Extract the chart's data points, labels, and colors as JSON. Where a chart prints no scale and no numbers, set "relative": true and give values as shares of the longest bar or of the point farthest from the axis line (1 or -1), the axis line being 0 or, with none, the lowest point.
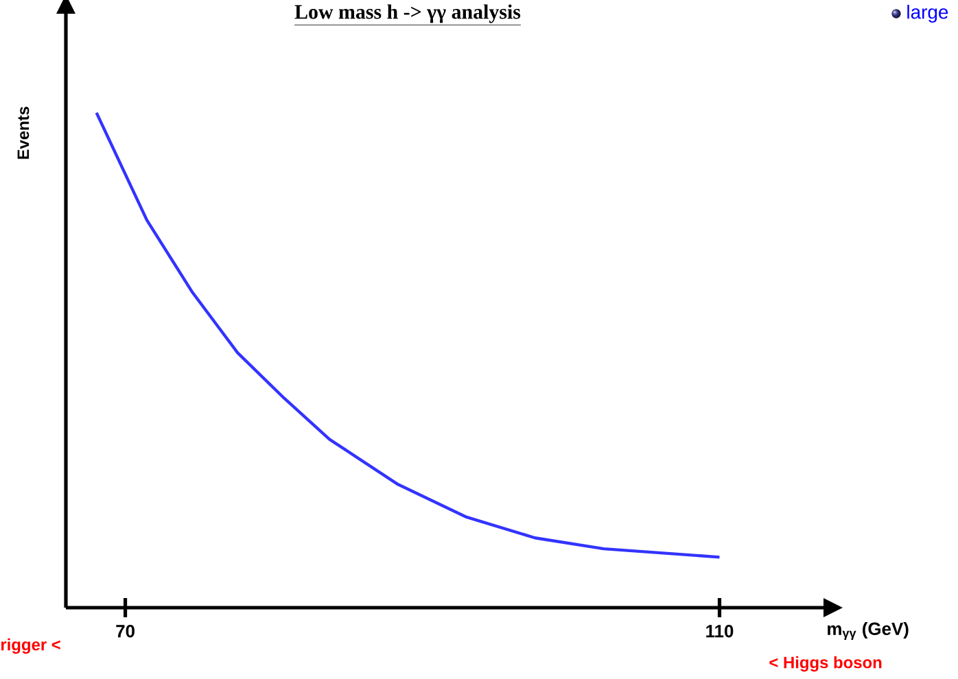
{
  "chart_data": {
    "type": "line",
    "relative": true,
    "title": "Low mass h -> γγ analysis",
    "xlabel": "m$_{γγ}$ (GeV)",
    "ylabel": "Events",
    "xlim": [
      66,
      117
    ],
    "xticks": [
      70,
      110
    ],
    "series": [
      {
        "color": "#3333ff",
        "x": [
          68.06,
          71.45,
          74.52,
          77.56,
          80.7,
          83.75,
          88.36,
          92.97,
          97.58,
          102.2,
          110.0
        ],
        "values": [
          1.0,
          0.783,
          0.637,
          0.515,
          0.423,
          0.34,
          0.249,
          0.183,
          0.141,
          0.119,
          0.102
        ]
      }
    ],
    "annotations": [
      "rigger <",
      "< Higgs boson",
      "large"
    ],
    "grid": false
  }
}
